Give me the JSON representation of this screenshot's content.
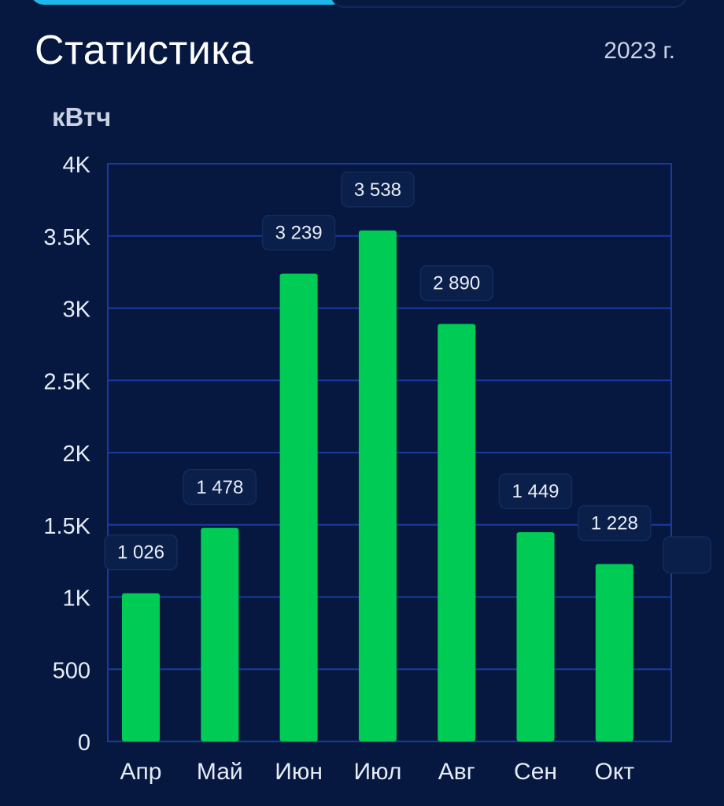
{
  "header": {
    "title": "Статистика",
    "year": "2023 г.",
    "unit": "кВтч"
  },
  "colors": {
    "background": "#061840",
    "bar": "#00cc55",
    "grid": "#1a3aa0",
    "tab_active": "#1fb7ea"
  },
  "chart_data": {
    "type": "bar",
    "categories": [
      "Апр",
      "Май",
      "Июн",
      "Июл",
      "Авг",
      "Сен",
      "Окт"
    ],
    "values": [
      1026,
      1478,
      3239,
      3538,
      2890,
      1449,
      1228
    ],
    "value_labels": [
      "1 026",
      "1 478",
      "3 239",
      "3 538",
      "2 890",
      "1 449",
      "1 228"
    ],
    "ylabel": "кВтч",
    "ylim": [
      0,
      4000
    ],
    "yticks": [
      0,
      500,
      1000,
      1500,
      2000,
      2500,
      3000,
      3500,
      4000
    ],
    "ytick_labels": [
      "0",
      "500",
      "1K",
      "1.5K",
      "2K",
      "2.5K",
      "3K",
      "3.5K",
      "4K"
    ],
    "grid": true
  }
}
